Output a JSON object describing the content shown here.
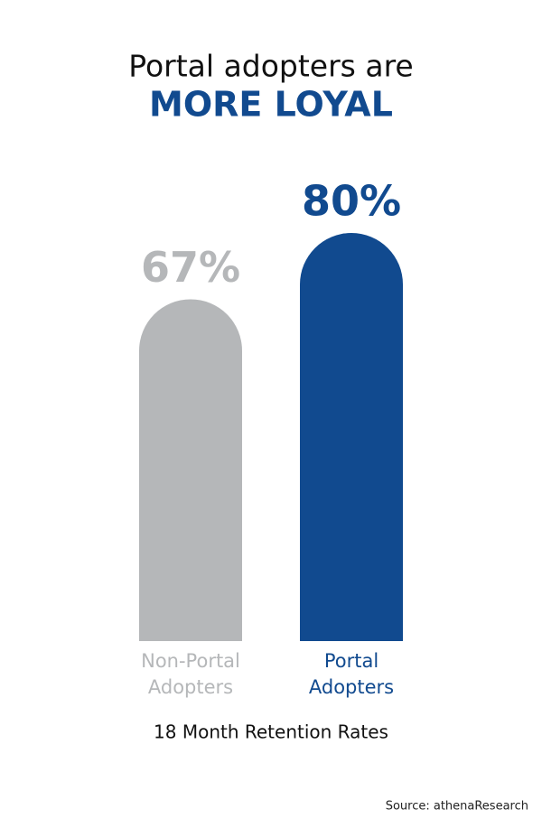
{
  "chart_data": {
    "type": "bar",
    "title": "Portal adopters are",
    "subtitle": "MORE LOYAL",
    "categories": [
      "Non-Portal Adopters",
      "Portal Adopters"
    ],
    "values": [
      67,
      80
    ],
    "value_labels": [
      "67%",
      "80%"
    ],
    "colors": [
      "#b5b7b9",
      "#114a8f"
    ],
    "x_label": "18 Month Retention Rates",
    "source": "Source: athenaResearch"
  }
}
